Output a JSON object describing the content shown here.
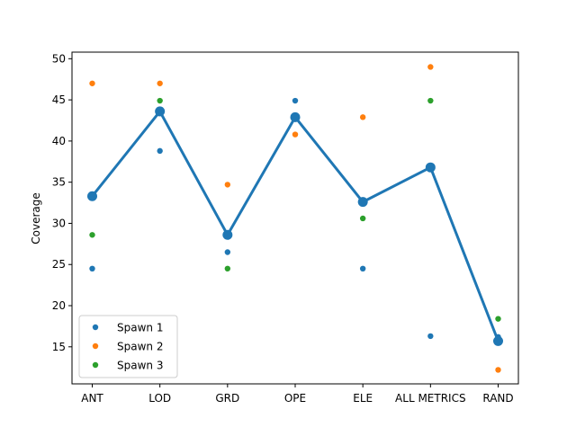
{
  "chart_data": {
    "type": "scatter",
    "title": "",
    "xlabel": "",
    "ylabel": "Coverage",
    "categories": [
      "ANT",
      "LOD",
      "GRD",
      "OPE",
      "ELE",
      "ALL METRICS",
      "RAND"
    ],
    "ylim": [
      10.5,
      50.8
    ],
    "yticks": [
      15,
      20,
      25,
      30,
      35,
      40,
      45,
      50
    ],
    "grid": false,
    "legend_placement": "lower-left",
    "series": [
      {
        "name": "Spawn 1",
        "color": "#1f77b4",
        "values": [
          24.5,
          38.8,
          26.5,
          44.9,
          24.5,
          16.3,
          16.2
        ]
      },
      {
        "name": "Spawn 2",
        "color": "#ff7f0e",
        "values": [
          47.0,
          47.0,
          34.7,
          40.8,
          42.9,
          49.0,
          12.2
        ]
      },
      {
        "name": "Spawn 3",
        "color": "#2ca02c",
        "values": [
          28.6,
          44.9,
          24.5,
          null,
          30.6,
          44.9,
          18.4
        ]
      }
    ],
    "mean_line": {
      "color": "#1f77b4",
      "values": [
        33.3,
        43.6,
        28.6,
        42.9,
        32.6,
        36.8,
        15.7
      ]
    }
  }
}
